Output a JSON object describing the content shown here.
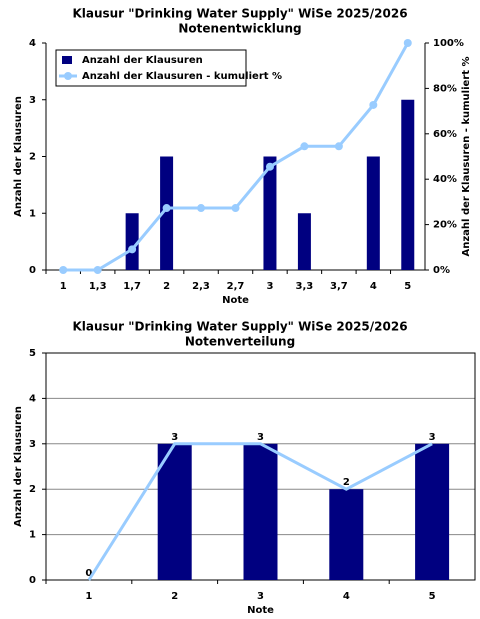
{
  "chart_data": [
    {
      "type": "combo",
      "title": "Klausur \"Drinking Water Supply\" WiSe 2025/2026",
      "subtitle": "Notenentwicklung",
      "x_label": "Note",
      "y_label": "Anzahl der Klausuren",
      "y2_label": "Anzahl der Klausuren - kumuliert %",
      "categories": [
        "1",
        "1,3",
        "1,7",
        "2",
        "2,3",
        "2,7",
        "3",
        "3,3",
        "3,7",
        "4",
        "5"
      ],
      "series": [
        {
          "name": "Anzahl der Klausuren",
          "type": "bar",
          "color": "#000080",
          "values": [
            0,
            0,
            1,
            2,
            0,
            0,
            2,
            1,
            0,
            2,
            3
          ]
        },
        {
          "name": "Anzahl der Klausuren - kumuliert %",
          "type": "line",
          "axis": "y2",
          "color": "#99ccff",
          "values": [
            0,
            0,
            9.1,
            27.3,
            27.3,
            27.3,
            45.5,
            54.5,
            54.5,
            72.7,
            100
          ]
        }
      ],
      "ylim": [
        0,
        4
      ],
      "yticks": [
        0,
        1,
        2,
        3,
        4
      ],
      "y2lim": [
        0,
        100
      ],
      "y2ticks": [
        {
          "value": 0,
          "label": "0%"
        },
        {
          "value": 20,
          "label": "20%"
        },
        {
          "value": 40,
          "label": "40%"
        },
        {
          "value": 60,
          "label": "60%"
        },
        {
          "value": 80,
          "label": "80%"
        },
        {
          "value": 100,
          "label": "100%"
        }
      ],
      "grid": false,
      "legend": "upper left"
    },
    {
      "type": "combo",
      "title": "Klausur \"Drinking Water Supply\" WiSe 2025/2026",
      "subtitle": "Notenverteilung",
      "x_label": "Note",
      "y_label": "Anzahl der Klausuren",
      "categories": [
        "1",
        "2",
        "3",
        "4",
        "5"
      ],
      "series": [
        {
          "type": "bar",
          "color": "#000080",
          "values": [
            0,
            3,
            3,
            2,
            3
          ],
          "data_labels": true
        },
        {
          "type": "line",
          "color": "#99ccff",
          "values": [
            0,
            3,
            3,
            2,
            3
          ]
        }
      ],
      "ylim": [
        0,
        5
      ],
      "yticks": [
        0,
        1,
        2,
        3,
        4,
        5
      ],
      "grid": true
    }
  ]
}
